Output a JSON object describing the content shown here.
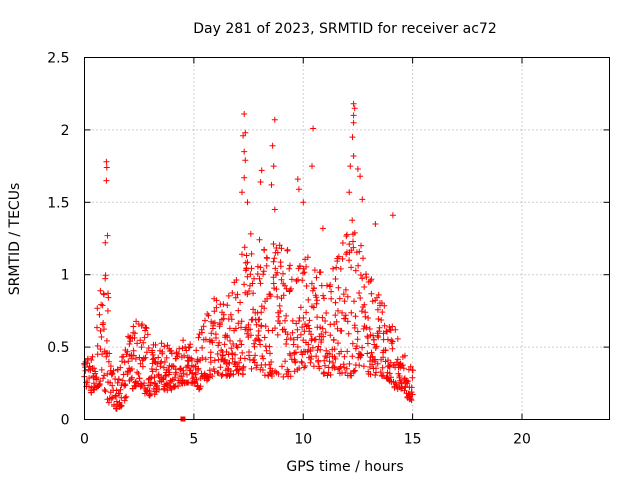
{
  "chart_data": {
    "type": "scatter",
    "title": "Day 281 of 2023, SRMTID for receiver ac72",
    "xlabel": "GPS time / hours",
    "ylabel": "SRMTID / TECUs",
    "xlim": [
      0,
      24
    ],
    "ylim": [
      0,
      2.5
    ],
    "x_ticks": [
      0,
      5,
      10,
      15,
      20
    ],
    "x_tick_labels": [
      "0",
      "5",
      "10",
      "15",
      "20"
    ],
    "y_ticks": [
      0,
      0.5,
      1,
      1.5,
      2,
      2.5
    ],
    "y_tick_labels": [
      "0",
      "0.5",
      "1",
      "1.5",
      "2",
      "2.5"
    ],
    "grid": true,
    "marker": "+",
    "series_color": "#ff0000",
    "envelope": {
      "x": [
        0.0,
        0.25,
        0.5,
        0.75,
        1.0,
        1.25,
        1.5,
        1.75,
        2.0,
        2.25,
        2.5,
        2.75,
        3.0,
        3.25,
        3.5,
        3.75,
        4.0,
        4.25,
        4.5,
        4.75,
        5.0,
        5.25,
        5.5,
        5.75,
        6.0,
        6.25,
        6.5,
        6.75,
        7.0,
        7.25,
        7.5,
        7.75,
        8.0,
        8.25,
        8.5,
        8.75,
        9.0,
        9.25,
        9.5,
        9.75,
        10.0,
        10.25,
        10.5,
        10.75,
        11.0,
        11.25,
        11.5,
        11.75,
        12.0,
        12.25,
        12.5,
        12.75,
        13.0,
        13.25,
        13.5,
        13.75,
        14.0,
        14.25,
        14.5,
        14.75,
        15.0
      ],
      "low": [
        0.25,
        0.18,
        0.2,
        0.25,
        0.15,
        0.08,
        0.06,
        0.1,
        0.18,
        0.22,
        0.25,
        0.15,
        0.15,
        0.18,
        0.22,
        0.2,
        0.2,
        0.22,
        0.25,
        0.25,
        0.25,
        0.2,
        0.25,
        0.3,
        0.3,
        0.3,
        0.3,
        0.3,
        0.32,
        0.3,
        0.32,
        0.35,
        0.35,
        0.3,
        0.3,
        0.3,
        0.3,
        0.28,
        0.3,
        0.35,
        0.35,
        0.4,
        0.35,
        0.35,
        0.3,
        0.3,
        0.35,
        0.3,
        0.3,
        0.3,
        0.35,
        0.35,
        0.3,
        0.3,
        0.3,
        0.3,
        0.25,
        0.2,
        0.2,
        0.15,
        0.12
      ],
      "high": [
        0.4,
        0.45,
        0.6,
        1.05,
        1.2,
        0.4,
        0.35,
        0.45,
        0.6,
        0.65,
        0.75,
        0.7,
        0.55,
        0.55,
        0.55,
        0.55,
        0.5,
        0.5,
        0.55,
        0.55,
        0.55,
        0.6,
        0.8,
        0.9,
        0.85,
        0.8,
        0.85,
        0.9,
        1.05,
        1.25,
        1.3,
        1.3,
        1.3,
        1.2,
        1.25,
        1.3,
        1.2,
        1.2,
        1.1,
        1.05,
        1.1,
        1.2,
        1.1,
        1.05,
        1.05,
        1.0,
        1.1,
        1.2,
        1.3,
        1.4,
        1.3,
        1.2,
        1.0,
        0.95,
        0.85,
        0.8,
        0.75,
        0.6,
        0.55,
        0.45,
        0.35
      ],
      "step_hours": 0.04
    },
    "outliers": [
      {
        "x": 1.0,
        "y": 1.78
      },
      {
        "x": 1.02,
        "y": 1.74
      },
      {
        "x": 1.0,
        "y": 1.65
      },
      {
        "x": 1.05,
        "y": 1.27
      },
      {
        "x": 0.95,
        "y": 1.22
      },
      {
        "x": 7.3,
        "y": 2.11
      },
      {
        "x": 7.35,
        "y": 1.98
      },
      {
        "x": 7.25,
        "y": 1.96
      },
      {
        "x": 7.3,
        "y": 1.85
      },
      {
        "x": 7.35,
        "y": 1.79
      },
      {
        "x": 7.3,
        "y": 1.67
      },
      {
        "x": 7.2,
        "y": 1.57
      },
      {
        "x": 7.45,
        "y": 1.5
      },
      {
        "x": 8.7,
        "y": 2.07
      },
      {
        "x": 8.6,
        "y": 1.89
      },
      {
        "x": 8.65,
        "y": 1.75
      },
      {
        "x": 8.55,
        "y": 1.62
      },
      {
        "x": 8.7,
        "y": 1.45
      },
      {
        "x": 8.1,
        "y": 1.72
      },
      {
        "x": 8.05,
        "y": 1.64
      },
      {
        "x": 9.75,
        "y": 1.66
      },
      {
        "x": 9.8,
        "y": 1.59
      },
      {
        "x": 10.45,
        "y": 2.01
      },
      {
        "x": 10.4,
        "y": 1.75
      },
      {
        "x": 10.0,
        "y": 1.5
      },
      {
        "x": 10.9,
        "y": 1.32
      },
      {
        "x": 12.3,
        "y": 2.18
      },
      {
        "x": 12.35,
        "y": 2.15
      },
      {
        "x": 12.3,
        "y": 2.1
      },
      {
        "x": 12.3,
        "y": 2.05
      },
      {
        "x": 12.25,
        "y": 1.95
      },
      {
        "x": 12.3,
        "y": 1.82
      },
      {
        "x": 12.15,
        "y": 1.75
      },
      {
        "x": 12.5,
        "y": 1.73
      },
      {
        "x": 12.6,
        "y": 1.68
      },
      {
        "x": 12.1,
        "y": 1.57
      },
      {
        "x": 12.7,
        "y": 1.52
      },
      {
        "x": 14.1,
        "y": 1.41
      },
      {
        "x": 13.3,
        "y": 1.35
      }
    ],
    "zero_marker": {
      "x": 4.5,
      "y": 0.0
    }
  }
}
